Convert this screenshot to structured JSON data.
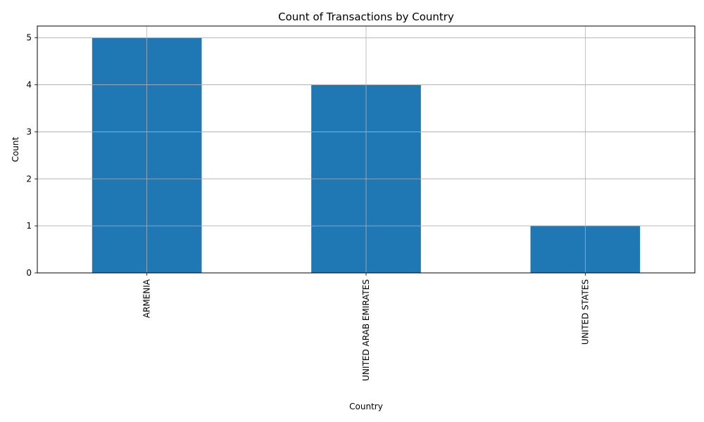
{
  "chart_data": {
    "type": "bar",
    "title": "Count of Transactions by Country",
    "xlabel": "Country",
    "ylabel": "Count",
    "categories": [
      "ARMENIA",
      "UNITED ARAB EMIRATES",
      "UNITED STATES"
    ],
    "values": [
      5,
      4,
      1
    ],
    "ylim": [
      0,
      5.25
    ],
    "yticks": [
      0,
      1,
      2,
      3,
      4,
      5
    ],
    "grid": true,
    "bar_color": "#1f77b4",
    "x_tick_rotation": "vertical",
    "legend": "none"
  }
}
